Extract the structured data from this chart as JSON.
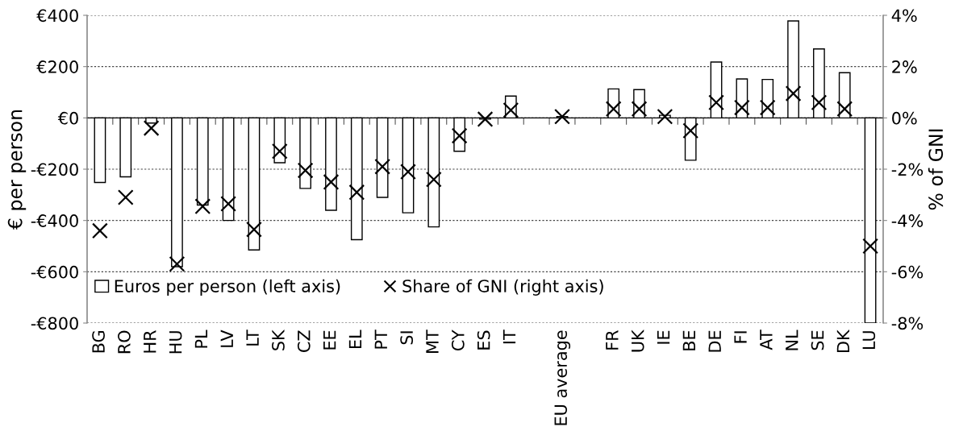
{
  "chart_data": {
    "type": "bar",
    "ylabel": "€ per person",
    "y2label": "% of GNI",
    "categories": [
      "BG",
      "RO",
      "HR",
      "HU",
      "PL",
      "LV",
      "LT",
      "SK",
      "CZ",
      "EE",
      "EL",
      "PT",
      "SI",
      "MT",
      "CY",
      "ES",
      "IT",
      null,
      "EU average",
      null,
      "FR",
      "UK",
      "IE",
      "BE",
      "DE",
      "FI",
      "AT",
      "NL",
      "SE",
      "DK",
      "LU"
    ],
    "series": [
      {
        "name": "Euros per person (left axis)",
        "color": "#ffffff",
        "values": [
          -252,
          -230,
          -20,
          -580,
          -340,
          -400,
          -515,
          -175,
          -275,
          -360,
          -475,
          -310,
          -370,
          -425,
          -130,
          -5,
          85,
          null,
          5,
          null,
          113,
          110,
          10,
          -165,
          218,
          152,
          150,
          378,
          269,
          176,
          -800
        ]
      },
      {
        "name": "Share of GNI (right axis)",
        "type": "scatter",
        "axis": "y2",
        "marker": "cross",
        "color": "#000000",
        "values": [
          -4.4,
          -3.1,
          -0.4,
          -5.7,
          -3.45,
          -3.35,
          -4.35,
          -1.3,
          -2.05,
          -2.5,
          -2.9,
          -1.9,
          -2.1,
          -2.4,
          -0.7,
          -0.05,
          0.3,
          null,
          0.05,
          null,
          0.35,
          0.35,
          0.05,
          -0.5,
          0.6,
          0.4,
          0.4,
          0.95,
          0.6,
          0.35,
          -5.0
        ]
      }
    ],
    "ylim": [
      -800,
      400
    ],
    "yticks": [
      {
        "value": -800,
        "label": "-€800"
      },
      {
        "value": -600,
        "label": "-€600"
      },
      {
        "value": -400,
        "label": "-€400"
      },
      {
        "value": -200,
        "label": "-€200"
      },
      {
        "value": 0,
        "label": "€0"
      },
      {
        "value": 200,
        "label": "€200"
      },
      {
        "value": 400,
        "label": "€400"
      }
    ],
    "y2lim": [
      -8,
      4
    ],
    "y2ticks": [
      {
        "value": -8,
        "label": "-8%"
      },
      {
        "value": -6,
        "label": "-6%"
      },
      {
        "value": -4,
        "label": "-4%"
      },
      {
        "value": -2,
        "label": "-2%"
      },
      {
        "value": 0,
        "label": "0%"
      },
      {
        "value": 2,
        "label": "2%"
      },
      {
        "value": 4,
        "label": "4%"
      }
    ],
    "grid": "y",
    "legend": "bottom"
  }
}
